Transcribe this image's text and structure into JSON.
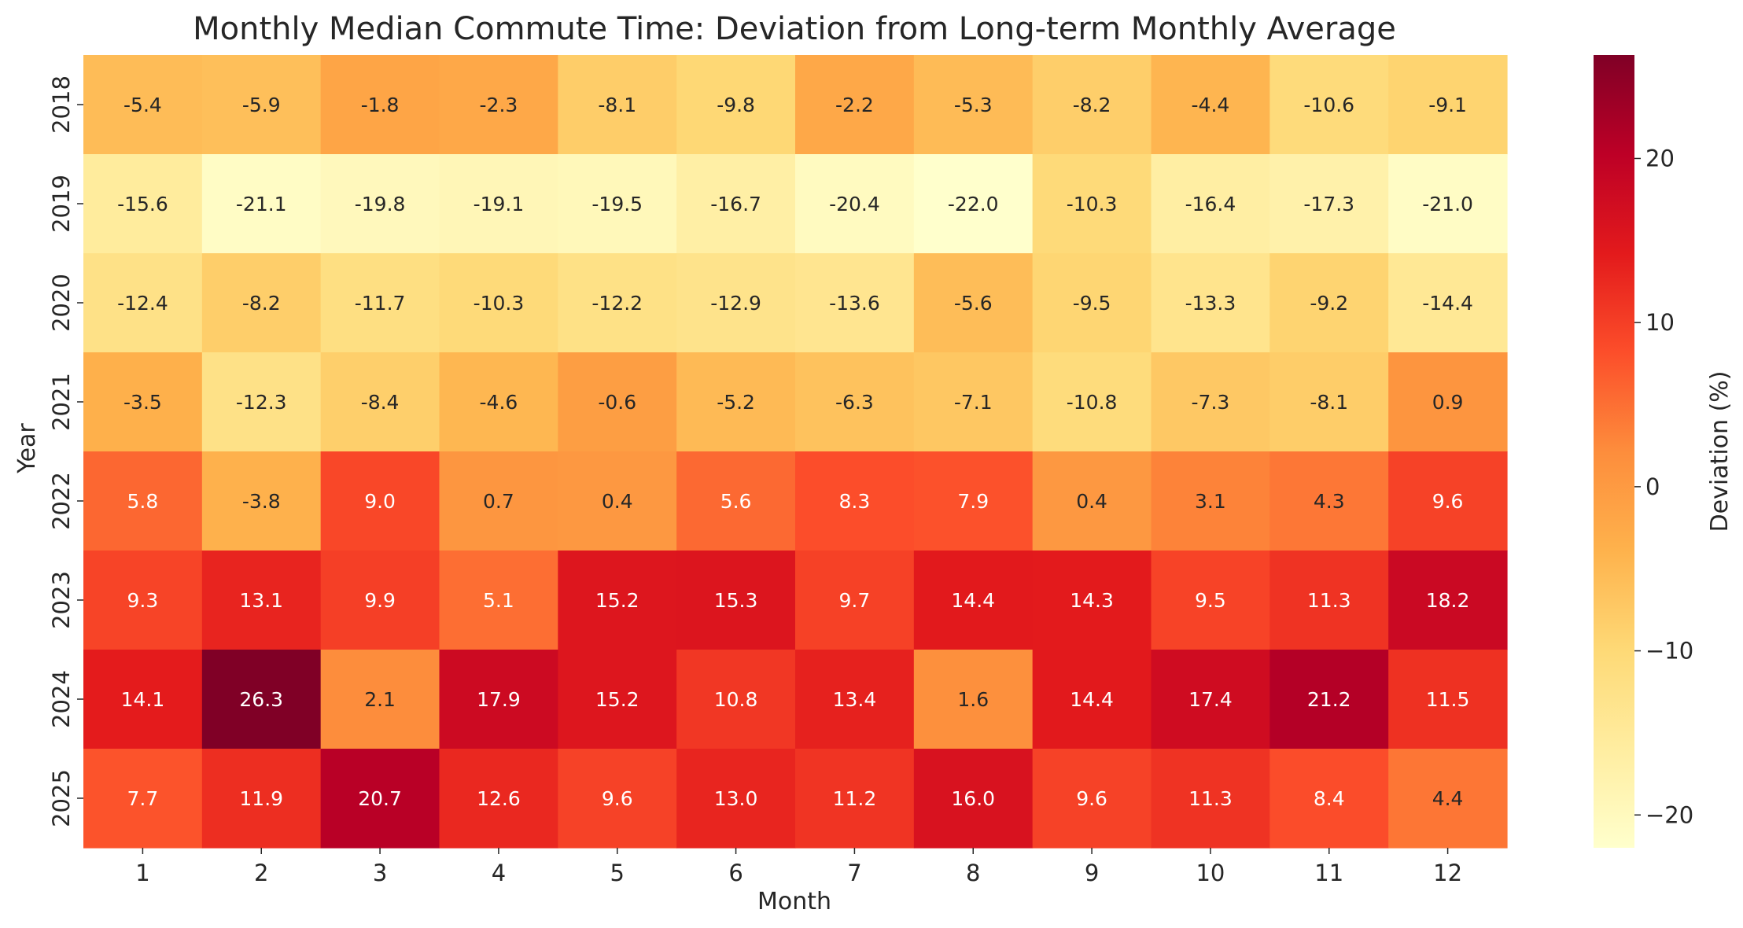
{
  "chart_data": {
    "type": "heatmap",
    "title": "Monthly Median Commute Time: Deviation from Long-term Monthly Average",
    "xlabel": "Month",
    "ylabel": "Year",
    "x_categories": [
      "1",
      "2",
      "3",
      "4",
      "5",
      "6",
      "7",
      "8",
      "9",
      "10",
      "11",
      "12"
    ],
    "y_categories": [
      "2018",
      "2019",
      "2020",
      "2021",
      "2022",
      "2023",
      "2024",
      "2025"
    ],
    "values": [
      [
        -5.4,
        -5.9,
        -1.8,
        -2.3,
        -8.1,
        -9.8,
        -2.2,
        -5.3,
        -8.2,
        -4.4,
        -10.6,
        -9.1
      ],
      [
        -15.6,
        -21.1,
        -19.8,
        -19.1,
        -19.5,
        -16.7,
        -20.4,
        -22.0,
        -10.3,
        -16.4,
        -17.3,
        -21.0
      ],
      [
        -12.4,
        -8.2,
        -11.7,
        -10.3,
        -12.2,
        -12.9,
        -13.6,
        -5.6,
        -9.5,
        -13.3,
        -9.2,
        -14.4
      ],
      [
        -3.5,
        -12.3,
        -8.4,
        -4.6,
        -0.6,
        -5.2,
        -6.3,
        -7.1,
        -10.8,
        -7.3,
        -8.1,
        0.9
      ],
      [
        5.8,
        -3.8,
        9.0,
        0.7,
        0.4,
        5.6,
        8.3,
        7.9,
        0.4,
        3.1,
        4.3,
        9.6
      ],
      [
        9.3,
        13.1,
        9.9,
        5.1,
        15.2,
        15.3,
        9.7,
        14.4,
        14.3,
        9.5,
        11.3,
        18.2
      ],
      [
        14.1,
        26.3,
        2.1,
        17.9,
        15.2,
        10.8,
        13.4,
        1.6,
        14.4,
        17.4,
        21.2,
        11.5
      ],
      [
        7.7,
        11.9,
        20.7,
        12.6,
        9.6,
        13.0,
        11.2,
        16.0,
        9.6,
        11.3,
        8.4,
        4.4
      ]
    ],
    "colorbar": {
      "label": "Deviation (%)",
      "range": [
        -22.0,
        26.3
      ],
      "ticks": [
        20,
        10,
        0,
        -10,
        -20
      ],
      "tick_labels": [
        "20",
        "10",
        "0",
        "−10",
        "−20"
      ],
      "colormap": "YlOrRd"
    }
  }
}
